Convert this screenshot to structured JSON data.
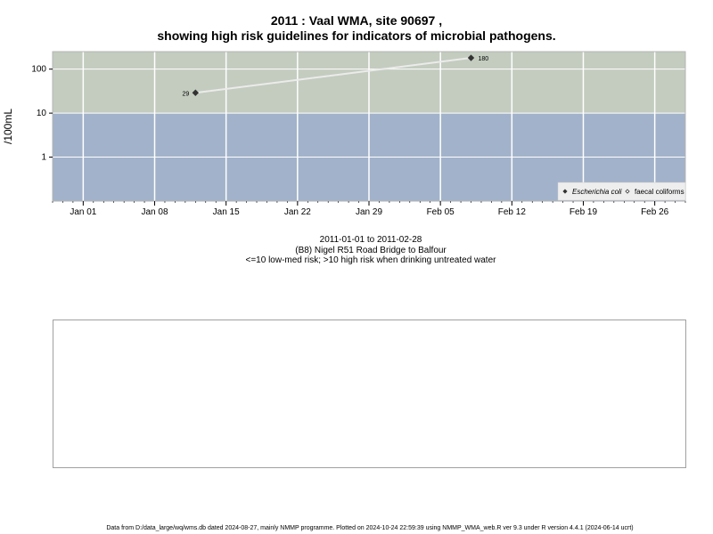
{
  "title": {
    "line1": "2011 : Vaal WMA, site 90697 ,",
    "line2": "showing high risk guidelines for indicators of microbial pathogens."
  },
  "chart_data": {
    "type": "line",
    "ylabel": "/100mL",
    "yscale": "log",
    "yticks": [
      "1",
      "10",
      "100"
    ],
    "ytick_values": [
      1,
      10,
      100
    ],
    "ylim": [
      0.1,
      250
    ],
    "xlim": [
      "2010-12-29",
      "2011-03-01"
    ],
    "xticks": [
      "Jan 01",
      "Jan 08",
      "Jan 15",
      "Jan 22",
      "Jan 29",
      "Feb 05",
      "Feb 12",
      "Feb 19",
      "Feb 26"
    ],
    "xtick_dates": [
      "2011-01-01",
      "2011-01-08",
      "2011-01-15",
      "2011-01-22",
      "2011-01-29",
      "2011-02-05",
      "2011-02-12",
      "2011-02-19",
      "2011-02-26"
    ],
    "risk_threshold": 10,
    "grid": true,
    "legend_position": "bottom-right",
    "colors": {
      "high_risk_band": "#c3ccbf",
      "low_risk_band": "#a2b2ca",
      "grid": "#ffffff",
      "line": "#ebebeb",
      "marker": "#333333"
    },
    "series": [
      {
        "name": "Escherichia coli",
        "marker": "filled-diamond",
        "points": [
          {
            "x": "2011-01-12",
            "y": 29,
            "label": "29"
          },
          {
            "x": "2011-02-08",
            "y": 180,
            "label": "180"
          }
        ]
      },
      {
        "name": "faecal coliforms",
        "marker": "open-diamond",
        "points": []
      }
    ]
  },
  "captions": {
    "date_range": "2011-01-01 to 2011-02-28",
    "site": "(B8) Nigel R51 Road Bridge to Balfour",
    "risk_note": "<=10 low-med risk; >10 high risk when drinking untreated water"
  },
  "footer": "Data from D:/data_large/wq/wms.db dated 2024-08-27, mainly NMMP programme. Plotted on 2024-10-24 22:59:39 using NMMP_WMA_web.R ver 9.3 under R version 4.4.1 (2024-06-14 ucrt)"
}
